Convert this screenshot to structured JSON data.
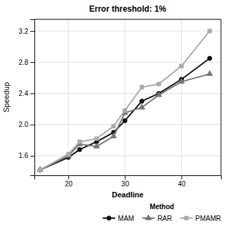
{
  "chart_data": {
    "type": "line",
    "title": "Error threshold: 1%",
    "xlabel": "Deadline",
    "ylabel": "Speedup",
    "legend_title": "Method",
    "legend": "bottom",
    "grid": true,
    "xlim": [
      14,
      47
    ],
    "ylim": [
      1.35,
      3.35
    ],
    "xticks": [
      20,
      30,
      40
    ],
    "yticks": [
      1.6,
      {
        "value": 2.0,
        "label": "2.0"
      },
      2.4,
      2.8,
      3.2
    ],
    "x": [
      15,
      20,
      22,
      25,
      28,
      30,
      33,
      36,
      40,
      45
    ],
    "series": [
      {
        "name": "MAM",
        "color": "#111111",
        "marker": "circle",
        "values": [
          1.42,
          1.58,
          1.68,
          1.78,
          1.9,
          2.05,
          2.3,
          2.4,
          2.58,
          2.85
        ]
      },
      {
        "name": "RAR",
        "color": "#777777",
        "marker": "triangle",
        "values": [
          1.42,
          1.6,
          1.75,
          1.72,
          1.85,
          2.15,
          2.22,
          2.38,
          2.55,
          2.65
        ]
      },
      {
        "name": "PMAMR",
        "color": "#aaaaaa",
        "marker": "square",
        "values": [
          1.42,
          1.62,
          1.78,
          1.82,
          1.98,
          2.18,
          2.48,
          2.52,
          2.75,
          3.2
        ]
      }
    ]
  }
}
